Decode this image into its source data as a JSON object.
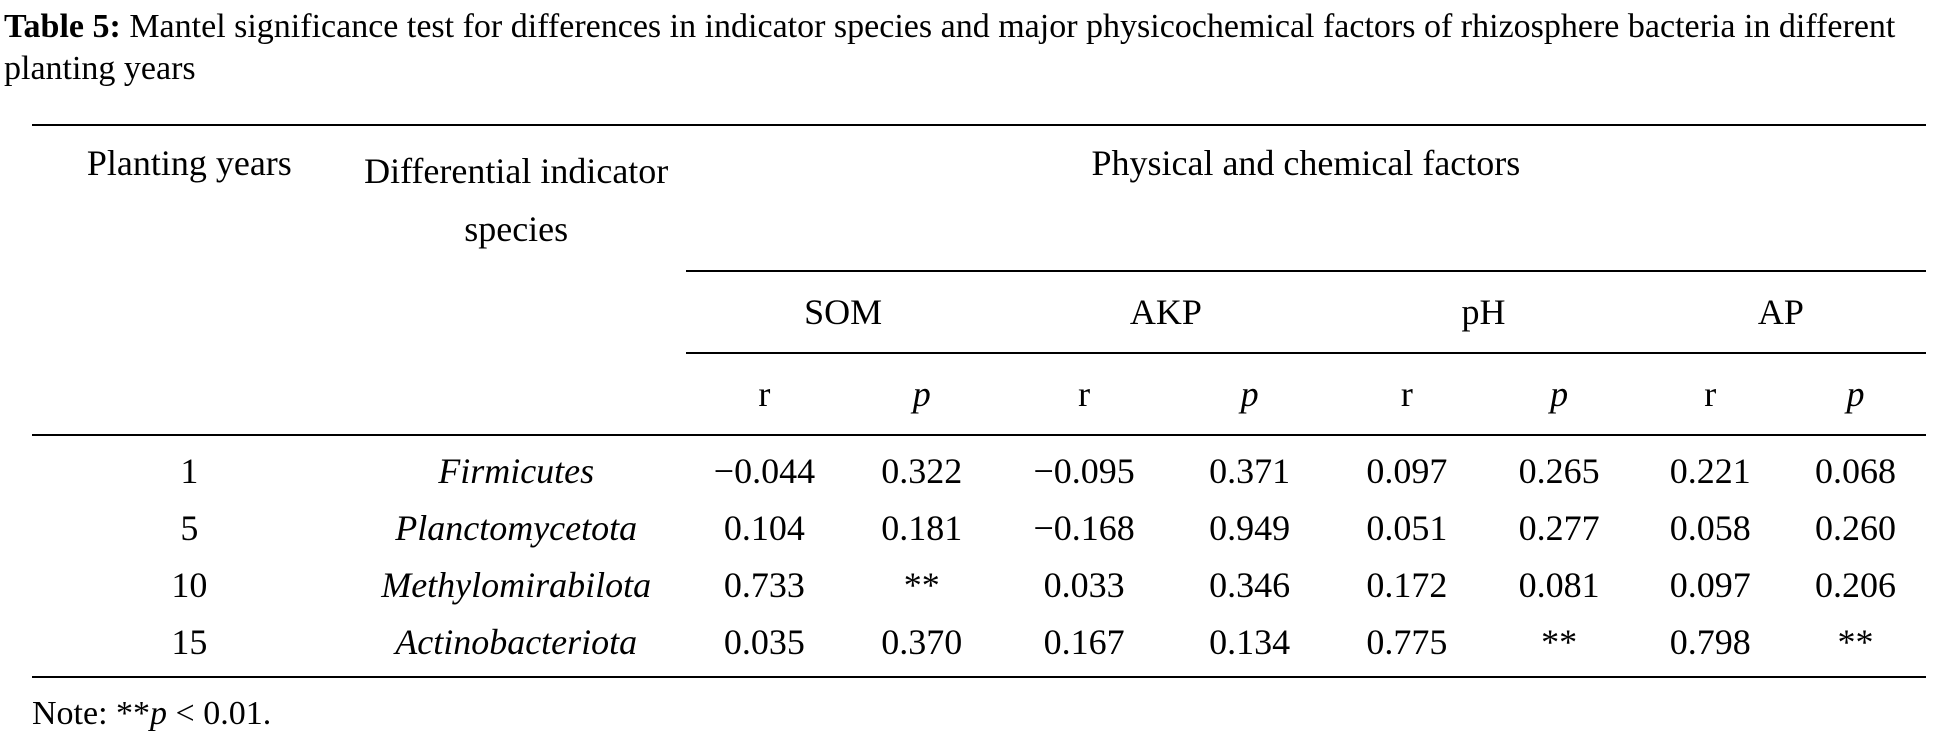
{
  "caption": {
    "label": "Table 5:",
    "text": "Mantel significance test for differences in indicator species and major physicochemical factors of rhizosphere bacteria in different planting years"
  },
  "header": {
    "planting_years": "Planting years",
    "species": "Differential indicator species",
    "group": "Physical and chemical factors",
    "factors": [
      "SOM",
      "AKP",
      "pH",
      "AP"
    ],
    "r_label": "r",
    "p_label": "p"
  },
  "rows": [
    {
      "year": "1",
      "species": "Firmicutes",
      "values": [
        "−0.044",
        "0.322",
        "−0.095",
        "0.371",
        "0.097",
        "0.265",
        "0.221",
        "0.068"
      ]
    },
    {
      "year": "5",
      "species": "Planctomycetota",
      "values": [
        "0.104",
        "0.181",
        "−0.168",
        "0.949",
        "0.051",
        "0.277",
        "0.058",
        "0.260"
      ]
    },
    {
      "year": "10",
      "species": "Methylomirabilota",
      "values": [
        "0.733",
        "**",
        "0.033",
        "0.346",
        "0.172",
        "0.081",
        "0.097",
        "0.206"
      ]
    },
    {
      "year": "15",
      "species": "Actinobacteriota",
      "values": [
        "0.035",
        "0.370",
        "0.167",
        "0.134",
        "0.775",
        "**",
        "0.798",
        "**"
      ]
    }
  ],
  "note": {
    "prefix": "Note: **",
    "p": "p",
    "suffix": " < 0.01."
  }
}
